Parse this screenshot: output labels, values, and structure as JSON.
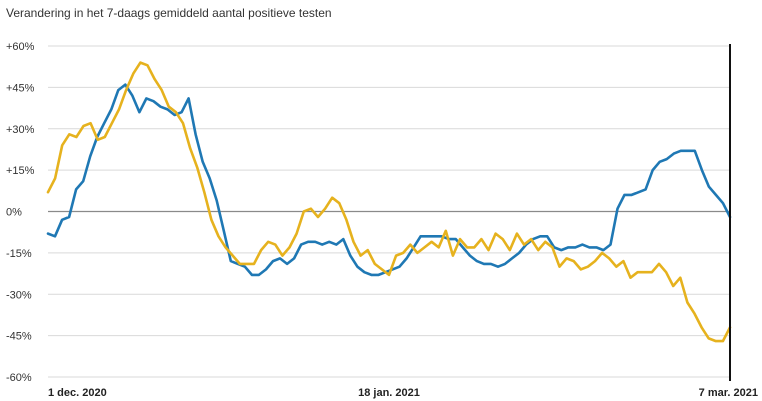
{
  "chart_data": {
    "type": "line",
    "title": "Verandering in het 7-daags gemiddeld aantal positieve testen",
    "xlabel": "",
    "ylabel": "",
    "y_ticks": [
      {
        "value": 60,
        "label": "+60%"
      },
      {
        "value": 45,
        "label": "+45%"
      },
      {
        "value": 30,
        "label": "+30%"
      },
      {
        "value": 15,
        "label": "+15%"
      },
      {
        "value": 0,
        "label": "0%"
      },
      {
        "value": -15,
        "label": "-15%"
      },
      {
        "value": -30,
        "label": "-30%"
      },
      {
        "value": -45,
        "label": "-45%"
      },
      {
        "value": -60,
        "label": "-60%"
      }
    ],
    "ylim": [
      -60,
      60
    ],
    "x_range": [
      0,
      96
    ],
    "x_ticks": [
      {
        "value": 0,
        "label": "1 dec. 2020"
      },
      {
        "value": 48,
        "label": "18 jan. 2021"
      },
      {
        "value": 96,
        "label": "7 mar. 2021"
      }
    ],
    "grid": true,
    "legend": "none",
    "series": [
      {
        "color": "#1f78b4",
        "values": [
          -8,
          -9,
          -3,
          -2,
          8,
          11,
          20,
          27,
          32,
          37,
          44,
          46,
          42,
          36,
          41,
          40,
          38,
          37,
          35,
          36,
          41,
          28,
          18,
          12,
          4,
          -7,
          -18,
          -19,
          -20,
          -23,
          -23,
          -21,
          -18,
          -17,
          -19,
          -17,
          -12,
          -11,
          -11,
          -12,
          -11,
          -12,
          -10,
          -16,
          -20,
          -22,
          -23,
          -23,
          -22,
          -21,
          -20,
          -17,
          -13,
          -9,
          -9,
          -9,
          -9,
          -10,
          -10,
          -13,
          -16,
          -18,
          -19,
          -19,
          -20,
          -19,
          -17,
          -15,
          -12,
          -10,
          -9,
          -9,
          -13,
          -14,
          -13,
          -13,
          -12,
          -13,
          -13,
          -14,
          -12,
          1,
          6,
          6,
          7,
          8,
          15,
          18,
          19,
          21,
          22,
          22,
          22,
          15,
          9,
          6,
          3,
          -2
        ]
      },
      {
        "color": "#e6b21e",
        "values": [
          7,
          12,
          24,
          28,
          27,
          31,
          32,
          26,
          27,
          32,
          37,
          44,
          50,
          54,
          53,
          48,
          44,
          38,
          36,
          32,
          23,
          16,
          7,
          -3,
          -9,
          -13,
          -16,
          -19,
          -19,
          -19,
          -14,
          -11,
          -12,
          -16,
          -13,
          -8,
          0,
          1,
          -2,
          1,
          5,
          3,
          -3,
          -11,
          -16,
          -14,
          -19,
          -21,
          -23,
          -16,
          -15,
          -12,
          -15,
          -13,
          -11,
          -13,
          -7,
          -16,
          -10,
          -13,
          -13,
          -10,
          -14,
          -8,
          -10,
          -14,
          -8,
          -12,
          -10,
          -14,
          -11,
          -13,
          -20,
          -17,
          -18,
          -21,
          -20,
          -18,
          -15,
          -17,
          -20,
          -18,
          -24,
          -22,
          -22,
          -22,
          -19,
          -22,
          -27,
          -24,
          -33,
          -37,
          -42,
          -46,
          -47,
          -47,
          -42
        ]
      }
    ]
  }
}
